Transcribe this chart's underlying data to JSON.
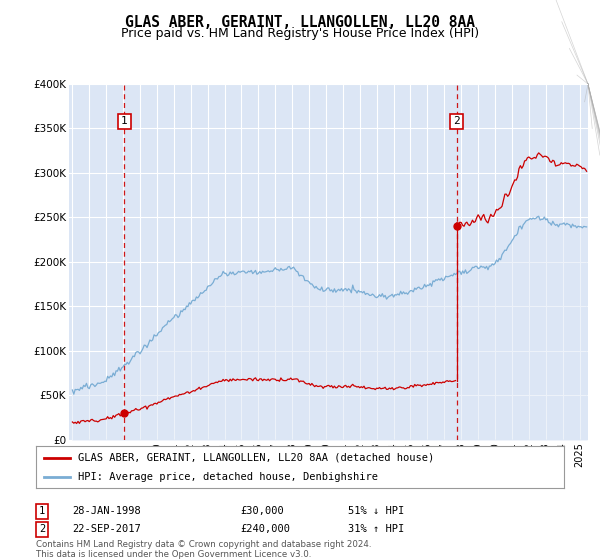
{
  "title": "GLAS ABER, GERAINT, LLANGOLLEN, LL20 8AA",
  "subtitle": "Price paid vs. HM Land Registry's House Price Index (HPI)",
  "title_fontsize": 10.5,
  "subtitle_fontsize": 9,
  "bg_color": "#dce6f5",
  "red_line_color": "#cc0000",
  "blue_line_color": "#7aadd4",
  "marker1_date": 1998.08,
  "marker1_price": 30000,
  "marker2_date": 2017.73,
  "marker2_price": 240000,
  "ylim": [
    0,
    400000
  ],
  "xlim": [
    1994.8,
    2025.5
  ],
  "legend_entry1": "GLAS ABER, GERAINT, LLANGOLLEN, LL20 8AA (detached house)",
  "legend_entry2": "HPI: Average price, detached house, Denbighshire",
  "ytick_labels": [
    "£0",
    "£50K",
    "£100K",
    "£150K",
    "£200K",
    "£250K",
    "£300K",
    "£350K",
    "£400K"
  ],
  "ytick_values": [
    0,
    50000,
    100000,
    150000,
    200000,
    250000,
    300000,
    350000,
    400000
  ],
  "footer": "Contains HM Land Registry data © Crown copyright and database right 2024.\nThis data is licensed under the Open Government Licence v3.0."
}
